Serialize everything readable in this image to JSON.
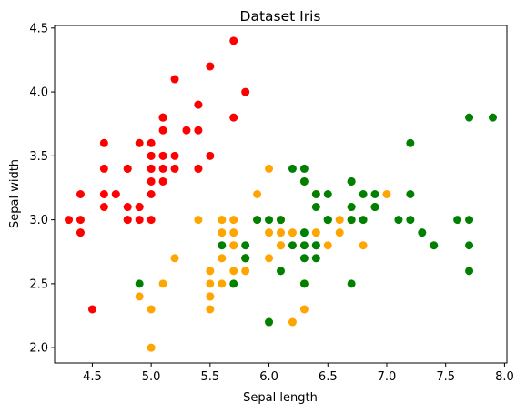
{
  "chart_data": {
    "type": "scatter",
    "title": "Dataset Iris",
    "xlabel": "Sepal length",
    "ylabel": "Sepal width",
    "xlim": [
      4.18,
      8.02
    ],
    "ylim": [
      1.88,
      4.52
    ],
    "xticks": [
      4.5,
      5.0,
      5.5,
      6.0,
      6.5,
      7.0,
      7.5,
      8.0
    ],
    "yticks": [
      2.0,
      2.5,
      3.0,
      3.5,
      4.0,
      4.5
    ],
    "xtick_labels": [
      "4.5",
      "5.0",
      "5.5",
      "6.0",
      "6.5",
      "7.0",
      "7.5",
      "8.0"
    ],
    "ytick_labels": [
      "2.0",
      "2.5",
      "3.0",
      "3.5",
      "4.0",
      "4.5"
    ],
    "grid": false,
    "legend": false,
    "series": [
      {
        "color": "#ff0000",
        "points": [
          [
            5.1,
            3.5
          ],
          [
            4.9,
            3.0
          ],
          [
            4.7,
            3.2
          ],
          [
            4.6,
            3.1
          ],
          [
            5.0,
            3.6
          ],
          [
            5.4,
            3.9
          ],
          [
            4.6,
            3.4
          ],
          [
            5.0,
            3.4
          ],
          [
            4.4,
            2.9
          ],
          [
            4.9,
            3.1
          ],
          [
            5.4,
            3.7
          ],
          [
            4.8,
            3.4
          ],
          [
            4.8,
            3.0
          ],
          [
            4.3,
            3.0
          ],
          [
            5.8,
            4.0
          ],
          [
            5.7,
            4.4
          ],
          [
            5.4,
            3.9
          ],
          [
            5.1,
            3.5
          ],
          [
            5.7,
            3.8
          ],
          [
            5.1,
            3.8
          ],
          [
            5.4,
            3.4
          ],
          [
            5.1,
            3.7
          ],
          [
            4.6,
            3.6
          ],
          [
            5.1,
            3.3
          ],
          [
            4.8,
            3.4
          ],
          [
            5.0,
            3.0
          ],
          [
            5.0,
            3.4
          ],
          [
            5.2,
            3.5
          ],
          [
            5.2,
            3.4
          ],
          [
            4.7,
            3.2
          ],
          [
            4.8,
            3.1
          ],
          [
            5.4,
            3.4
          ],
          [
            5.2,
            4.1
          ],
          [
            5.5,
            4.2
          ],
          [
            4.9,
            3.1
          ],
          [
            5.0,
            3.2
          ],
          [
            5.5,
            3.5
          ],
          [
            4.9,
            3.6
          ],
          [
            4.4,
            3.0
          ],
          [
            5.1,
            3.4
          ],
          [
            5.0,
            3.5
          ],
          [
            4.5,
            2.3
          ],
          [
            4.4,
            3.2
          ],
          [
            5.0,
            3.5
          ],
          [
            5.1,
            3.8
          ],
          [
            4.8,
            3.0
          ],
          [
            5.1,
            3.8
          ],
          [
            4.6,
            3.2
          ],
          [
            5.3,
            3.7
          ],
          [
            5.0,
            3.3
          ]
        ]
      },
      {
        "color": "#ffa500",
        "points": [
          [
            7.0,
            3.2
          ],
          [
            6.4,
            3.2
          ],
          [
            6.9,
            3.1
          ],
          [
            5.5,
            2.3
          ],
          [
            6.5,
            2.8
          ],
          [
            5.7,
            2.8
          ],
          [
            6.3,
            3.3
          ],
          [
            4.9,
            2.4
          ],
          [
            6.6,
            2.9
          ],
          [
            5.2,
            2.7
          ],
          [
            5.0,
            2.0
          ],
          [
            5.9,
            3.0
          ],
          [
            6.0,
            2.2
          ],
          [
            6.1,
            2.9
          ],
          [
            5.6,
            2.9
          ],
          [
            6.7,
            3.1
          ],
          [
            5.6,
            3.0
          ],
          [
            5.8,
            2.7
          ],
          [
            6.2,
            2.2
          ],
          [
            5.6,
            2.5
          ],
          [
            5.9,
            3.2
          ],
          [
            6.1,
            2.8
          ],
          [
            6.3,
            2.5
          ],
          [
            6.1,
            2.8
          ],
          [
            6.4,
            2.9
          ],
          [
            6.6,
            3.0
          ],
          [
            6.8,
            2.8
          ],
          [
            6.7,
            3.0
          ],
          [
            6.0,
            2.9
          ],
          [
            5.7,
            2.6
          ],
          [
            5.5,
            2.4
          ],
          [
            5.5,
            2.4
          ],
          [
            5.8,
            2.7
          ],
          [
            6.0,
            2.7
          ],
          [
            5.4,
            3.0
          ],
          [
            6.0,
            3.4
          ],
          [
            6.7,
            3.1
          ],
          [
            6.3,
            2.3
          ],
          [
            5.6,
            3.0
          ],
          [
            5.5,
            2.5
          ],
          [
            5.5,
            2.6
          ],
          [
            6.1,
            3.0
          ],
          [
            5.8,
            2.6
          ],
          [
            5.0,
            2.3
          ],
          [
            5.6,
            2.7
          ],
          [
            5.7,
            3.0
          ],
          [
            5.7,
            2.9
          ],
          [
            6.2,
            2.9
          ],
          [
            5.1,
            2.5
          ],
          [
            5.7,
            2.8
          ]
        ]
      },
      {
        "color": "#008000",
        "points": [
          [
            6.3,
            3.3
          ],
          [
            5.8,
            2.7
          ],
          [
            7.1,
            3.0
          ],
          [
            6.3,
            2.9
          ],
          [
            6.5,
            3.0
          ],
          [
            7.6,
            3.0
          ],
          [
            4.9,
            2.5
          ],
          [
            7.3,
            2.9
          ],
          [
            6.7,
            2.5
          ],
          [
            7.2,
            3.6
          ],
          [
            6.5,
            3.2
          ],
          [
            6.4,
            2.7
          ],
          [
            6.8,
            3.0
          ],
          [
            5.7,
            2.5
          ],
          [
            5.8,
            2.8
          ],
          [
            6.4,
            3.2
          ],
          [
            6.5,
            3.0
          ],
          [
            7.7,
            3.8
          ],
          [
            7.7,
            2.6
          ],
          [
            6.0,
            2.2
          ],
          [
            6.9,
            3.2
          ],
          [
            5.6,
            2.8
          ],
          [
            7.7,
            2.8
          ],
          [
            6.3,
            2.7
          ],
          [
            6.7,
            3.3
          ],
          [
            7.2,
            3.2
          ],
          [
            6.2,
            2.8
          ],
          [
            6.1,
            3.0
          ],
          [
            6.4,
            2.8
          ],
          [
            7.2,
            3.0
          ],
          [
            7.4,
            2.8
          ],
          [
            7.9,
            3.8
          ],
          [
            6.4,
            2.8
          ],
          [
            6.3,
            2.8
          ],
          [
            6.1,
            2.6
          ],
          [
            7.7,
            3.0
          ],
          [
            6.3,
            3.4
          ],
          [
            6.4,
            3.1
          ],
          [
            6.0,
            3.0
          ],
          [
            6.9,
            3.1
          ],
          [
            6.7,
            3.1
          ],
          [
            6.9,
            3.1
          ],
          [
            5.8,
            2.7
          ],
          [
            6.8,
            3.2
          ],
          [
            6.7,
            3.3
          ],
          [
            6.7,
            3.0
          ],
          [
            6.3,
            2.5
          ],
          [
            6.5,
            3.0
          ],
          [
            6.2,
            3.4
          ],
          [
            5.9,
            3.0
          ]
        ]
      }
    ]
  }
}
